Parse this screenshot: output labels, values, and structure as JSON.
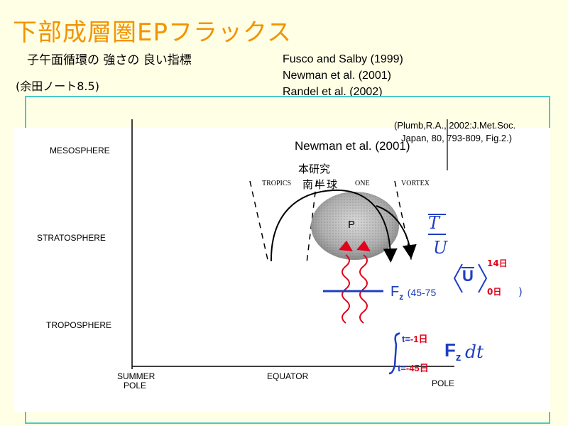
{
  "slide": {
    "title": "下部成層圏EPフラックス",
    "subtitle": "子午面循環の 強さの 良い指標",
    "note": "(余田ノート8.5)",
    "references": [
      "Fusco and Salby (1999)",
      "Newman et al. (2001)",
      "Randel et al. (2002)"
    ]
  },
  "figure": {
    "layers": [
      "MESOSPHERE",
      "STRATOSPHERE",
      "TROPOSPHERE"
    ],
    "zones": [
      "TROPICS",
      "ONE",
      "VORTEX"
    ],
    "axis": [
      "SUMMER",
      "POLE",
      "EQUATOR",
      "POLE"
    ],
    "pump_label": "P",
    "citation_line1": "(Plumb,R.A., 2002:J.Met.Soc.",
    "citation_line2": "Japan, 80, 793-809, Fig.2.)",
    "newman": "Newman et al. (2001)",
    "this_study": "本研究",
    "southern_hemisphere": "南半球"
  },
  "formula": {
    "t_bar": "T",
    "u_bar": "U",
    "u_mean": "U",
    "upper_sub": "14日",
    "lower_sub": "0日",
    "close_paren": ")",
    "fz": "F",
    "fz_sub": "z",
    "fz_range": "(45-75",
    "int_upper_prefix": "t=",
    "int_upper_value": "-1",
    "int_upper_unit": "日",
    "int_lower_prefix": "t=",
    "int_lower_value": "-45",
    "int_lower_unit": "日",
    "fz_int": "F",
    "fz_int_sub": "z",
    "dt": "dt"
  },
  "colors": {
    "title": "#f29400",
    "panel_border": "#4cc9c9",
    "formula": "#1f3fbf",
    "wave": "#e2001a",
    "background": "#ffffe6"
  }
}
